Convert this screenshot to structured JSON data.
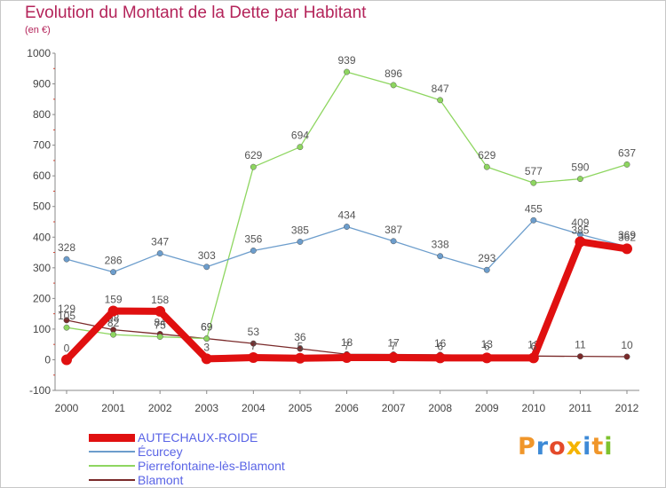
{
  "header": {
    "title": "Evolution du Montant de la Dette par Habitant",
    "subtitle": "(en €)"
  },
  "logo": {
    "text": "Proxiti"
  },
  "chart_data": {
    "type": "line",
    "title": "Evolution du Montant de la Dette par Habitant",
    "subtitle": "(en €)",
    "xlabel": "",
    "ylabel": "",
    "x": [
      2000,
      2001,
      2002,
      2003,
      2004,
      2005,
      2006,
      2007,
      2008,
      2009,
      2010,
      2011,
      2012
    ],
    "ylim": [
      -100,
      1000
    ],
    "yticks": [
      -100,
      0,
      100,
      200,
      300,
      400,
      500,
      600,
      700,
      800,
      900,
      1000
    ],
    "grid": false,
    "legend_position": "bottom-left",
    "series": [
      {
        "name": "Blamont",
        "color": "#7a2a2a",
        "values": [
          129,
          98,
          84,
          69,
          53,
          36,
          18,
          17,
          16,
          13,
          12,
          11,
          10
        ],
        "labels": [
          "129",
          "98",
          "84",
          "69",
          "53",
          "36",
          "18",
          "17",
          "16",
          "13",
          "12",
          "11",
          "10"
        ]
      },
      {
        "name": "Pierrefontaine-lès-Blamont",
        "color": "#8ed660",
        "values": [
          105,
          82,
          75,
          69,
          629,
          694,
          939,
          896,
          847,
          629,
          577,
          590,
          637
        ],
        "labels": [
          "105",
          "82",
          "75",
          "69",
          "629",
          "694",
          "939",
          "896",
          "847",
          "629",
          "577",
          "590",
          "637"
        ]
      },
      {
        "name": "Écurcey",
        "color": "#6c9dcc",
        "values": [
          328,
          286,
          347,
          303,
          356,
          385,
          434,
          387,
          338,
          293,
          455,
          409,
          369
        ],
        "labels": [
          "328",
          "286",
          "347",
          "303",
          "356",
          "385",
          "434",
          "387",
          "338",
          "293",
          "455",
          "409",
          "369"
        ]
      },
      {
        "name": "AUTECHAUX-ROIDE",
        "color": "#e01010",
        "values": [
          0,
          159,
          158,
          3,
          7,
          5,
          7,
          7,
          6,
          6,
          6,
          385,
          362
        ],
        "labels": [
          "0",
          "159",
          "158",
          "3",
          "7",
          "5",
          "7",
          "7",
          "6",
          "6",
          "6",
          "385",
          "362"
        ]
      }
    ]
  },
  "legend": [
    {
      "name": "AUTECHAUX-ROIDE",
      "color": "#e01010"
    },
    {
      "name": "Écurcey",
      "color": "#6c9dcc"
    },
    {
      "name": "Pierrefontaine-lès-Blamont",
      "color": "#8ed660"
    },
    {
      "name": "Blamont",
      "color": "#7a2a2a"
    }
  ]
}
